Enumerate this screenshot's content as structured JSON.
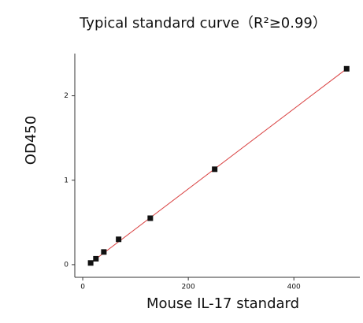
{
  "chart_data": {
    "type": "scatter",
    "title": "Typical standard curve（R²≥0.99）",
    "x_label": "Mouse IL-17 standard",
    "y_label": "OD450",
    "series": [
      {
        "color": "#111111",
        "x": [
          15,
          25,
          40,
          68,
          128,
          250,
          500
        ],
        "values": [
          0.02,
          0.07,
          0.15,
          0.3,
          0.55,
          1.13,
          2.32
        ]
      }
    ],
    "fit": {
      "color": "#d94040",
      "x": [
        15,
        500
      ],
      "values": [
        0.02,
        2.32
      ]
    },
    "xlim": [
      -15,
      525
    ],
    "ylim": [
      -0.15,
      2.5
    ],
    "xticks": [
      0,
      200,
      400
    ],
    "yticks": [
      0,
      1,
      2
    ],
    "grid": false
  }
}
